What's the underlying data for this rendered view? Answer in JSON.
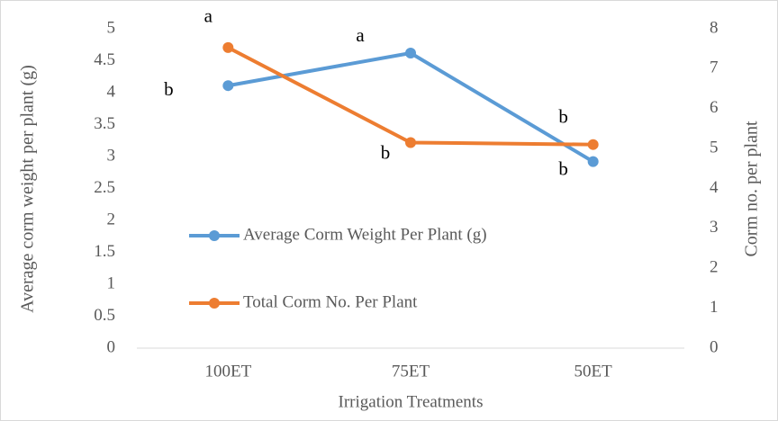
{
  "chart_data": {
    "type": "line",
    "x_label": "Irrigation Treatments",
    "y_label": "Average corm weight per plant (g)",
    "y2_label": "Corm no. per plant",
    "categories": [
      "100ET",
      "75ET",
      "50ET"
    ],
    "series": [
      {
        "name": "Average Corm Weight Per Plant (g)",
        "color": "#5b9bd5",
        "values": [
          4.11,
          4.62,
          2.92
        ],
        "point_labels": [
          "b",
          "a",
          "b"
        ]
      },
      {
        "name": "Total Corm No. Per Plant",
        "color": "#ed7d31",
        "axis": "y2",
        "values": [
          7.53,
          5.15,
          5.1
        ],
        "point_labels": [
          "a",
          "b",
          "b"
        ]
      }
    ],
    "ylim": [
      0,
      5
    ],
    "yticks": [
      0,
      0.5,
      1,
      1.5,
      2,
      2.5,
      3,
      3.5,
      4,
      4.5,
      5
    ],
    "y2lim": [
      0,
      8
    ],
    "y2ticks": [
      0,
      1,
      2,
      3,
      4,
      5,
      6,
      7,
      8
    ],
    "grid": false
  }
}
